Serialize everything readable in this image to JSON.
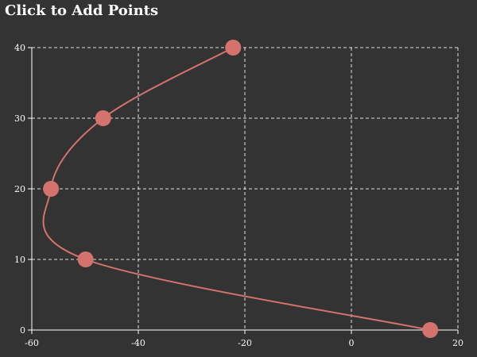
{
  "header": {
    "title": "Click to Add Points"
  },
  "colors": {
    "background": "#333333",
    "curve": "#d4736e",
    "point": "#d4736e",
    "axis": "#ffffff",
    "grid": "#ffffff"
  },
  "chart_data": {
    "type": "line",
    "title": "Click to Add Points",
    "xlabel": "",
    "ylabel": "",
    "xlim": [
      -60,
      20
    ],
    "ylim": [
      0,
      40
    ],
    "x_ticks": [
      -60,
      -40,
      -20,
      0,
      20
    ],
    "y_ticks": [
      0,
      10,
      20,
      30,
      40
    ],
    "grid": true,
    "curve": "smooth",
    "series": [
      {
        "points": [
          {
            "x": 14.8,
            "y": 0
          },
          {
            "x": -49.9,
            "y": 10
          },
          {
            "x": -56.4,
            "y": 20
          },
          {
            "x": -46.6,
            "y": 30
          },
          {
            "x": -22.2,
            "y": 40
          }
        ]
      }
    ]
  }
}
